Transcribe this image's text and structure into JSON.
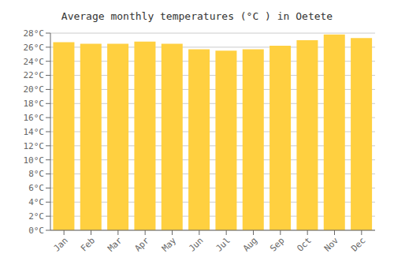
{
  "chart_data": {
    "type": "bar",
    "title": "Average monthly temperatures (°C ) in Oetete",
    "categories": [
      "Jan",
      "Feb",
      "Mar",
      "Apr",
      "May",
      "Jun",
      "Jul",
      "Aug",
      "Sep",
      "Oct",
      "Nov",
      "Dec"
    ],
    "values": [
      26.7,
      26.5,
      26.5,
      26.8,
      26.5,
      25.7,
      25.5,
      25.7,
      26.2,
      27.0,
      27.8,
      27.3
    ],
    "color": "#FFD040",
    "ylim": [
      0,
      28
    ],
    "yticks": [
      {
        "value": 0,
        "label": "0°C"
      },
      {
        "value": 2,
        "label": "2°C"
      },
      {
        "value": 4,
        "label": "4°C"
      },
      {
        "value": 6,
        "label": "6°C"
      },
      {
        "value": 8,
        "label": "8°C"
      },
      {
        "value": 10,
        "label": "10°C"
      },
      {
        "value": 12,
        "label": "12°C"
      },
      {
        "value": 14,
        "label": "14°C"
      },
      {
        "value": 16,
        "label": "16°C"
      },
      {
        "value": 18,
        "label": "18°C"
      },
      {
        "value": 20,
        "label": "20°C"
      },
      {
        "value": 22,
        "label": "22°C"
      },
      {
        "value": 24,
        "label": "24°C"
      },
      {
        "value": 26,
        "label": "26°C"
      },
      {
        "value": 28,
        "label": "28°C"
      }
    ],
    "grid": true
  }
}
